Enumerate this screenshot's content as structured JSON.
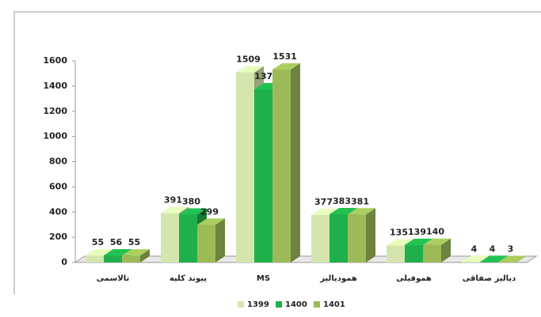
{
  "chart_data": {
    "type": "bar",
    "categories": [
      "تالاسمی",
      "پیوند کلیه",
      "MS",
      "همودیالیز",
      "هموفیلی",
      "دیالیز صفاقی"
    ],
    "series": [
      {
        "name": "1399",
        "color": "#d4e6ad",
        "values": [
          55,
          391,
          1509,
          377,
          135,
          4
        ]
      },
      {
        "name": "1400",
        "color": "#1fb04b",
        "values": [
          56,
          380,
          1374,
          383,
          139,
          4
        ]
      },
      {
        "name": "1401",
        "color": "#9cbb58",
        "values": [
          55,
          299,
          1531,
          381,
          140,
          3
        ]
      }
    ],
    "ylim": [
      0,
      1600
    ],
    "yticks": [
      0,
      200,
      400,
      600,
      800,
      1000,
      1200,
      1400,
      1600
    ],
    "legend": "bottom"
  }
}
